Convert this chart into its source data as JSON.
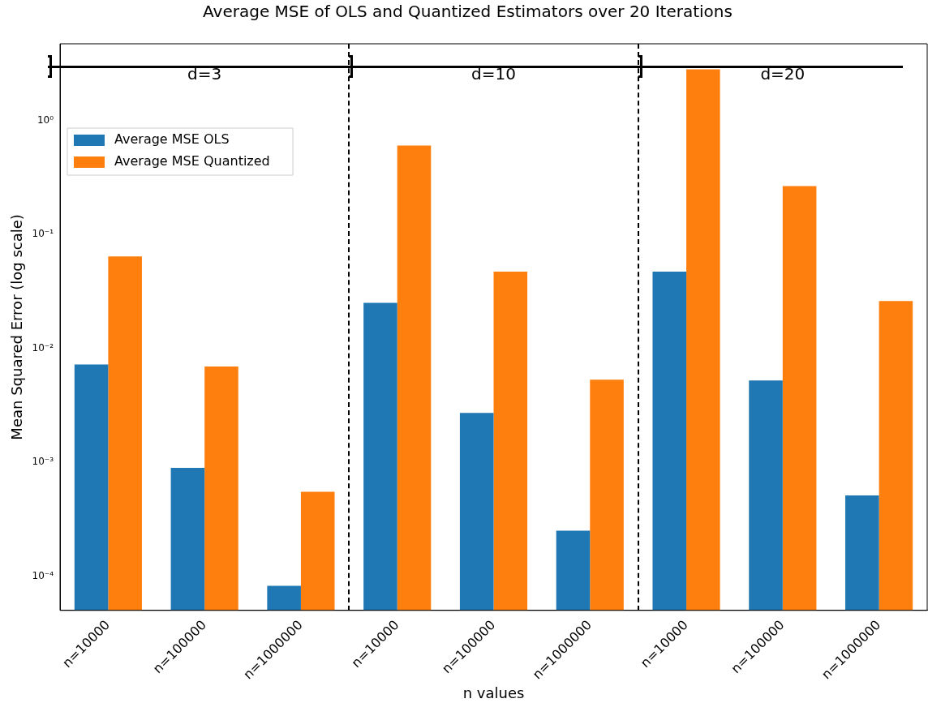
{
  "chart_data": {
    "type": "bar",
    "title": "Average MSE of OLS and Quantized Estimators over 20 Iterations",
    "xlabel": "n values",
    "ylabel": "Mean Squared Error (log scale)",
    "categories": [
      "n=10000",
      "n=100000",
      "n=1000000",
      "n=10000",
      "n=100000",
      "n=1000000",
      "n=10000",
      "n=100000",
      "n=1000000"
    ],
    "series": [
      {
        "name": "Average MSE OLS",
        "color": "#1f77b4",
        "values": [
          0.0072,
          0.00089,
          8.2e-05,
          0.025,
          0.0027,
          0.00025,
          0.047,
          0.0052,
          0.00051
        ]
      },
      {
        "name": "Average MSE Quantized",
        "color": "#ff7f0e",
        "values": [
          0.064,
          0.0069,
          0.00055,
          0.6,
          0.047,
          0.0053,
          2.8,
          0.265,
          0.026
        ]
      }
    ],
    "log": "y",
    "ylim": [
      5e-05,
      4.7
    ],
    "yticks": [
      {
        "value": 0.0001,
        "label": "10⁻⁴"
      },
      {
        "value": 0.001,
        "label": "10⁻³"
      },
      {
        "value": 0.01,
        "label": "10⁻²"
      },
      {
        "value": 0.1,
        "label": "10⁻¹"
      },
      {
        "value": 1,
        "label": "10⁰"
      }
    ],
    "annotations": [
      "d=3",
      "d=10",
      "d=20"
    ],
    "legend": "top left",
    "grid": false
  }
}
